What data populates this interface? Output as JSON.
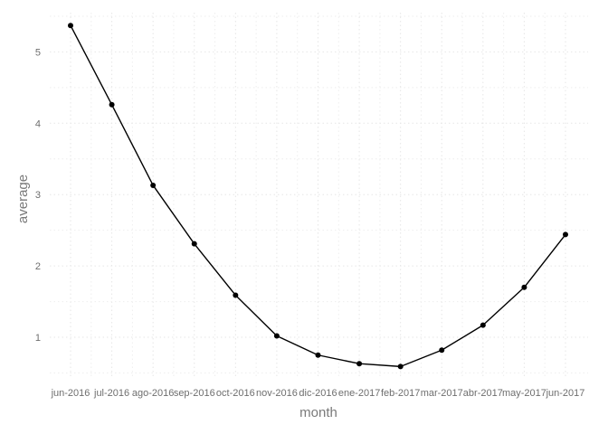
{
  "chart_data": {
    "type": "line",
    "title": "",
    "xlabel": "month",
    "ylabel": "average",
    "categories": [
      "jun-2016",
      "jul-2016",
      "ago-2016",
      "sep-2016",
      "oct-2016",
      "nov-2016",
      "dic-2016",
      "ene-2017",
      "feb-2017",
      "mar-2017",
      "abr-2017",
      "may-2017",
      "jun-2017"
    ],
    "series": [
      {
        "values": [
          5.37,
          4.26,
          3.13,
          2.31,
          1.59,
          1.02,
          0.75,
          0.63,
          0.59,
          0.82,
          1.17,
          1.7,
          2.44
        ]
      }
    ],
    "ylim": [
      0.43,
      5.55
    ],
    "yticks": [
      1,
      2,
      3,
      4,
      5
    ],
    "grid": true,
    "grid_style": "dotted",
    "legend": "none",
    "colors": {
      "line": "#000000",
      "point": "#000000",
      "grid": "#e6e6e6",
      "text": "#6e6e6e"
    }
  }
}
